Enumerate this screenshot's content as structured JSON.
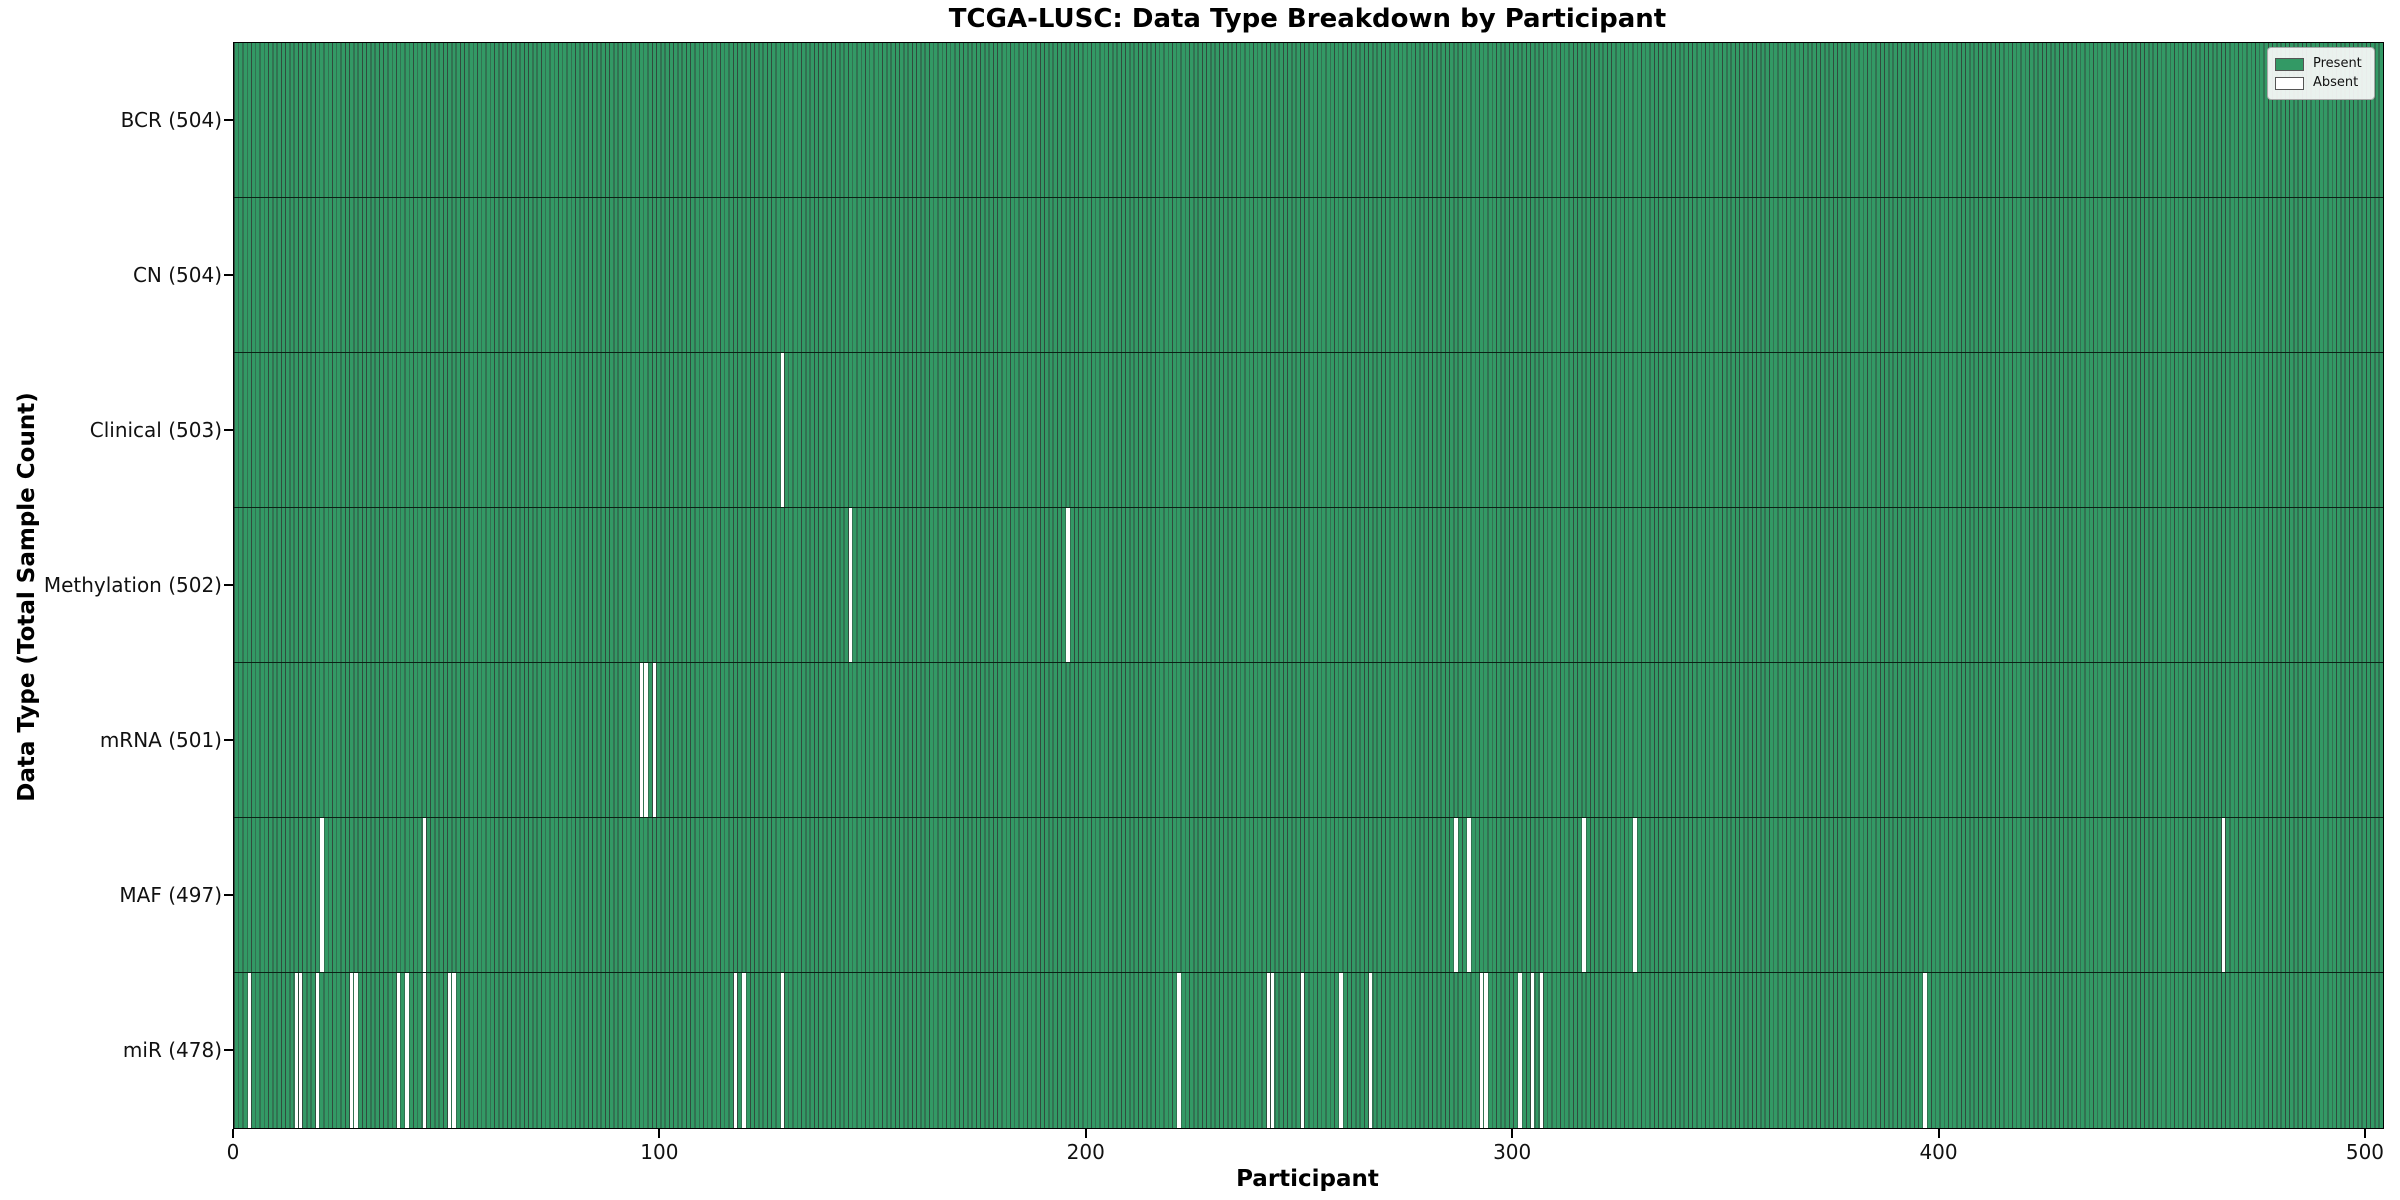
{
  "chart_data": {
    "type": "heatmap",
    "title": "TCGA-LUSC: Data Type Breakdown by Participant",
    "xlabel": "Participant",
    "ylabel": "Data Type (Total Sample Count)",
    "x_ticks": [
      0,
      100,
      200,
      300,
      400,
      500
    ],
    "x_range": [
      0,
      504
    ],
    "n_participants": 504,
    "grid": false,
    "legend_position": "upper right",
    "legend": [
      {
        "label": "Present",
        "color": "#339965"
      },
      {
        "label": "Absent",
        "color": "#ffffff"
      }
    ],
    "colors": {
      "present": "#339965",
      "bar_edge": "rgba(12,44,28,0.85)",
      "absent": "#ffffff"
    },
    "rows": [
      {
        "label": "BCR (504)",
        "data_type": "BCR",
        "total_count": 504,
        "absent_participants": []
      },
      {
        "label": "CN (504)",
        "data_type": "CN",
        "total_count": 504,
        "absent_participants": []
      },
      {
        "label": "Clinical (503)",
        "data_type": "Clinical",
        "total_count": 503,
        "absent_participants": [
          128
        ]
      },
      {
        "label": "Methylation (502)",
        "data_type": "Methylation",
        "total_count": 502,
        "absent_participants": [
          144,
          195
        ]
      },
      {
        "label": "mRNA (501)",
        "data_type": "mRNA",
        "total_count": 501,
        "absent_participants": [
          95,
          96,
          98
        ]
      },
      {
        "label": "MAF (497)",
        "data_type": "MAF",
        "total_count": 497,
        "absent_participants": [
          20,
          44,
          286,
          289,
          316,
          328,
          466
        ]
      },
      {
        "label": "miR (478)",
        "data_type": "miR",
        "total_count": 478,
        "absent_participants": [
          3,
          14,
          15,
          19,
          27,
          28,
          38,
          40,
          44,
          50,
          51,
          117,
          119,
          128,
          221,
          242,
          243,
          250,
          259,
          266,
          292,
          293,
          301,
          304,
          306,
          396
        ]
      }
    ]
  }
}
